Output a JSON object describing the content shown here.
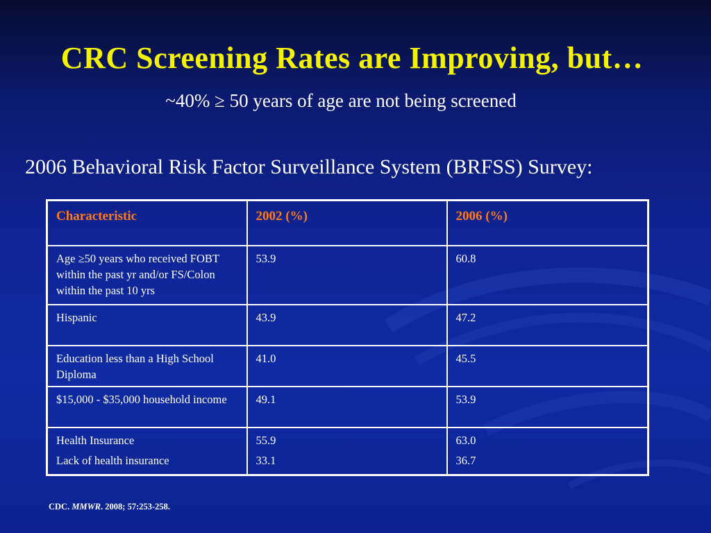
{
  "slide": {
    "title": "CRC Screening Rates are Improving, but…",
    "subtitle": "~40% ≥ 50 years of age are not being screened",
    "survey_heading": "2006 Behavioral Risk Factor Surveillance System (BRFSS) Survey:"
  },
  "table": {
    "headers": [
      "Characteristic",
      "2002 (%)",
      "2006 (%)"
    ],
    "rows": [
      {
        "characteristic": "Age ≥50 years who received FOBT within the past yr and/or FS/Colon within the past 10 yrs",
        "y2002": "53.9",
        "y2006": "60.8"
      },
      {
        "characteristic": "Hispanic",
        "y2002": "43.9",
        "y2006": "47.2"
      },
      {
        "characteristic": "Education less than a High School Diploma",
        "y2002": "41.0",
        "y2006": "45.5"
      },
      {
        "characteristic": "$15,000 - $35,000 household income",
        "y2002": "49.1",
        "y2006": "53.9"
      },
      {
        "characteristic_lines": [
          "Health Insurance",
          "Lack of health insurance"
        ],
        "y2002_lines": [
          "55.9",
          "33.1"
        ],
        "y2006_lines": [
          "63.0",
          "36.7"
        ]
      }
    ]
  },
  "citation": {
    "prefix": "CDC.",
    "journal": "MMWR",
    "suffix": ". 2008; 57:253-258."
  },
  "colors": {
    "title": "#f4f200",
    "header_text": "#ff7a1a",
    "background": "#0f2496",
    "text": "#ffffff"
  }
}
